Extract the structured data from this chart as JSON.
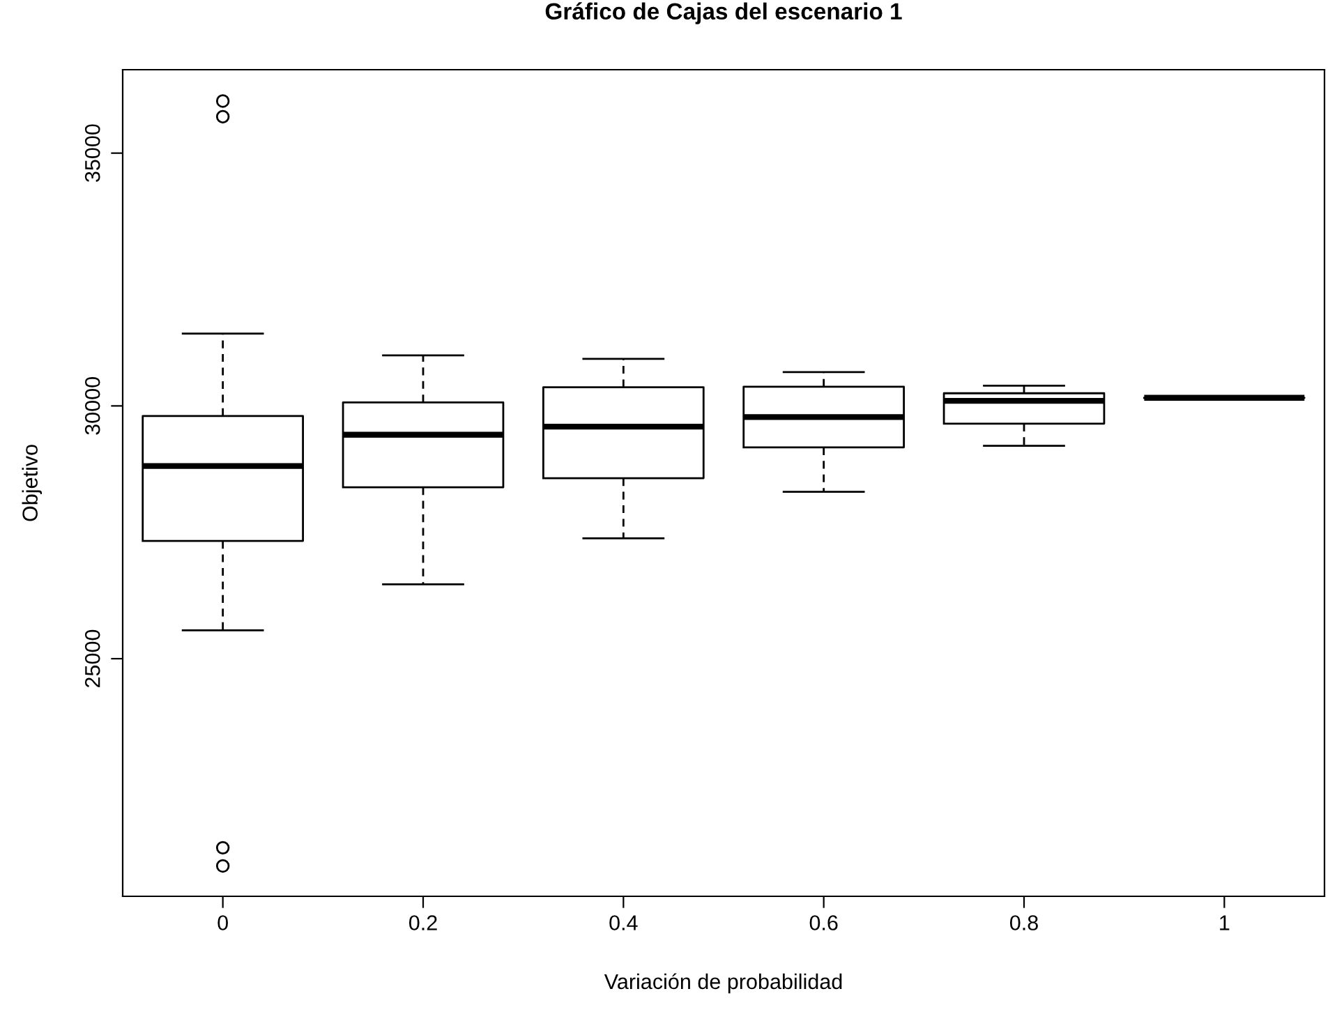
{
  "chart_data": {
    "type": "box",
    "title": "Gráfico de Cajas del escenario 1",
    "xlabel": "Variación de probabilidad",
    "ylabel": "Objetivo",
    "categories": [
      "0",
      "0.2",
      "0.4",
      "0.6",
      "0.8",
      "1"
    ],
    "boxes": [
      {
        "low": 25560,
        "q1": 27330,
        "median": 28810,
        "q3": 29800,
        "high": 31430,
        "outliers": [
          36030,
          35720,
          21260,
          20900
        ]
      },
      {
        "low": 26470,
        "q1": 28390,
        "median": 29430,
        "q3": 30070,
        "high": 31000
      },
      {
        "low": 27380,
        "q1": 28570,
        "median": 29590,
        "q3": 30370,
        "high": 30930
      },
      {
        "low": 28300,
        "q1": 29180,
        "median": 29780,
        "q3": 30380,
        "high": 30670
      },
      {
        "low": 29210,
        "q1": 29650,
        "median": 30100,
        "q3": 30250,
        "high": 30400
      },
      {
        "low": 30160,
        "q1": 30160,
        "median": 30160,
        "q3": 30160,
        "high": 30160
      }
    ],
    "ylim": [
      20300,
      36650
    ],
    "yticks": [
      25000,
      30000,
      35000
    ],
    "grid": false
  }
}
